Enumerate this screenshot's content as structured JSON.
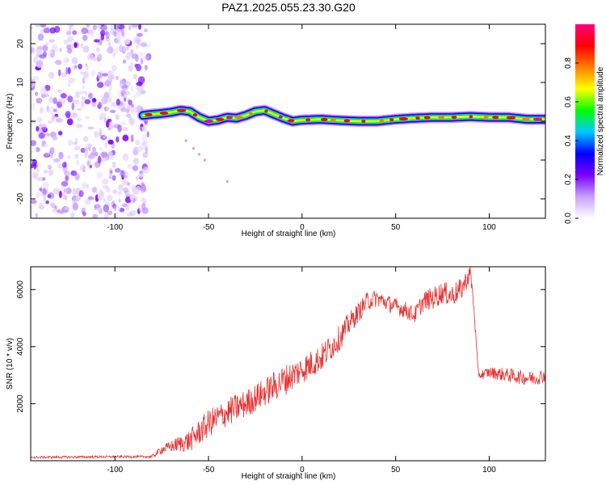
{
  "title": "PAZ1.2025.055.23.30.G20",
  "chart_data": [
    {
      "type": "heatmap",
      "xlabel": "Height of straight line (km)",
      "ylabel": "Frequency (Hz)",
      "xlim": [
        -145,
        130
      ],
      "ylim": [
        -25,
        25
      ],
      "xticks": [
        -100,
        -50,
        0,
        50,
        100
      ],
      "yticks": [
        -20,
        -10,
        0,
        10,
        20
      ],
      "colorbar": {
        "label": "Normalized spectral amplitude",
        "range": [
          0,
          1
        ],
        "ticks": [
          0.0,
          0.2,
          0.4,
          0.6,
          0.8
        ],
        "colors": [
          "#ffffff",
          "#c8a0ff",
          "#7a00ff",
          "#0000ff",
          "#00c8ff",
          "#00ff00",
          "#ffff00",
          "#ff8000",
          "#ff0000",
          "#ff0080"
        ]
      },
      "noise_region_x": [
        -145,
        -82
      ],
      "ridge": {
        "x": [
          -85,
          -80,
          -75,
          -70,
          -65,
          -60,
          -55,
          -50,
          -45,
          -40,
          -35,
          -30,
          -25,
          -20,
          -15,
          -10,
          -5,
          0,
          10,
          20,
          30,
          40,
          50,
          60,
          70,
          80,
          90,
          100,
          110,
          120,
          130
        ],
        "freq": [
          1.5,
          1.8,
          2.0,
          2.3,
          2.8,
          2.5,
          1.0,
          0.0,
          0.3,
          1.0,
          0.8,
          1.5,
          2.5,
          2.8,
          1.8,
          0.8,
          0.0,
          0.3,
          0.5,
          0.2,
          0.0,
          0.0,
          0.5,
          0.8,
          1.0,
          1.0,
          1.2,
          1.0,
          1.0,
          0.5,
          0.5
        ]
      },
      "stray_points": [
        [
          -62,
          -5
        ],
        [
          -58,
          -7
        ],
        [
          -55,
          -8.5
        ],
        [
          -52,
          -10
        ],
        [
          -40,
          -15.5
        ]
      ]
    },
    {
      "type": "line",
      "xlabel": "Height of straight line (km)",
      "ylabel": "SNR (10 * v/v)",
      "xlim": [
        -145,
        130
      ],
      "ylim": [
        0,
        6800
      ],
      "xticks": [
        -100,
        -50,
        0,
        50,
        100
      ],
      "yticks": [
        2000,
        4000,
        6000
      ],
      "series": [
        {
          "color": "#e83030",
          "x": [
            -145,
            -120,
            -100,
            -85,
            -80,
            -75,
            -70,
            -60,
            -50,
            -40,
            -30,
            -20,
            -10,
            0,
            10,
            20,
            25,
            30,
            35,
            40,
            50,
            55,
            60,
            65,
            70,
            75,
            80,
            85,
            90,
            92,
            94,
            95,
            100,
            110,
            120,
            125,
            130
          ],
          "y": [
            120,
            130,
            140,
            140,
            150,
            400,
            500,
            700,
            1300,
            1700,
            2000,
            2400,
            2800,
            3200,
            3600,
            4300,
            4800,
            5200,
            5600,
            5700,
            5400,
            5300,
            5100,
            5600,
            5700,
            5900,
            5800,
            6000,
            6600,
            5200,
            3100,
            3000,
            3100,
            3000,
            2900,
            2900,
            3000
          ],
          "amp": [
            40,
            40,
            40,
            40,
            60,
            150,
            200,
            400,
            500,
            500,
            500,
            500,
            550,
            500,
            500,
            450,
            400,
            350,
            350,
            300,
            300,
            300,
            300,
            350,
            400,
            400,
            400,
            400,
            300,
            200,
            150,
            150,
            200,
            250,
            250,
            250,
            250
          ]
        }
      ]
    }
  ]
}
